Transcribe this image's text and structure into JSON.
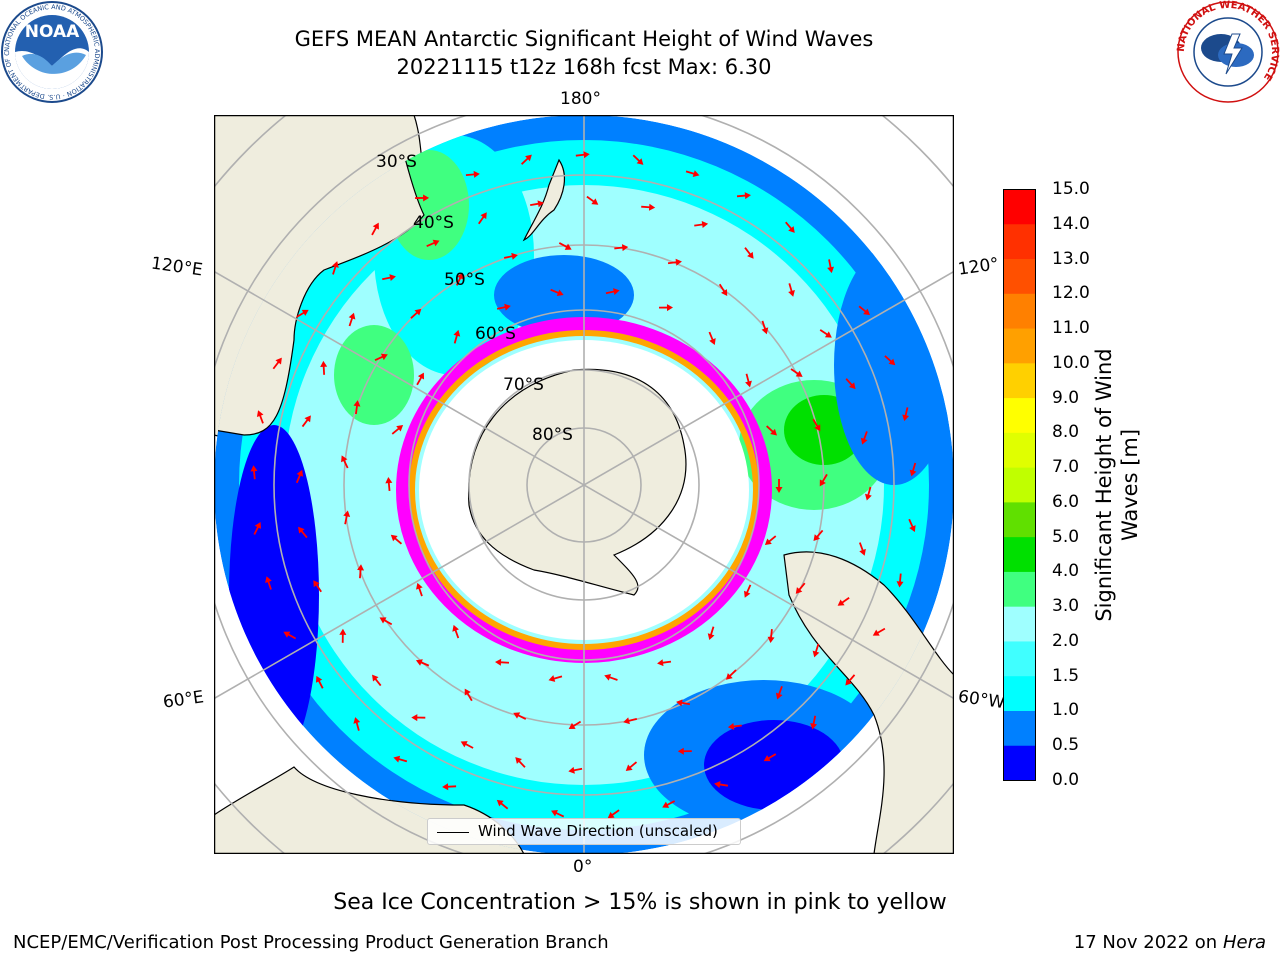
{
  "title": {
    "line1": "GEFS MEAN Antarctic Significant Height of Wind Waves",
    "line2": "20221115 t12z 168h fcst   Max: 6.30"
  },
  "map": {
    "projection": "south-polar-stereographic",
    "longitude_labels": {
      "top": "180°",
      "bottom": "0°",
      "upper_left": "120°E",
      "lower_left": "60°E",
      "upper_right": "120°",
      "lower_right": "60°W"
    },
    "latitude_labels": [
      "30°S",
      "40°S",
      "50°S",
      "60°S",
      "70°S",
      "80°S"
    ],
    "legend_label": "Wind Wave Direction (unscaled)",
    "arrow_color": "#ff0000",
    "land_color": "#efedde",
    "sea_ice_note_colors": [
      "#ff00ff",
      "#ffa500",
      "#ffff00"
    ]
  },
  "colorbar": {
    "label": "Significant Height of Wind Waves [m]",
    "label_line1": "Significant Height of Wind",
    "label_line2": "Waves [m]",
    "ticks": [
      "0.0",
      "0.5",
      "1.0",
      "1.5",
      "2.0",
      "3.0",
      "4.0",
      "5.0",
      "6.0",
      "7.0",
      "8.0",
      "9.0",
      "10.0",
      "11.0",
      "12.0",
      "13.0",
      "14.0",
      "15.0"
    ],
    "colors": [
      "#0000ff",
      "#0080ff",
      "#00ffff",
      "#40ffff",
      "#9fffff",
      "#40ff80",
      "#00e000",
      "#60e000",
      "#c0ff00",
      "#e0ff00",
      "#ffff00",
      "#ffd000",
      "#ffa000",
      "#ff8000",
      "#ff5000",
      "#ff3000",
      "#ff0000"
    ]
  },
  "caption": "Sea Ice Concentration > 15% is shown in pink to yellow",
  "footer": {
    "left": "NCEP/EMC/Verification Post Processing Product Generation Branch",
    "right_date": "17 Nov 2022 on",
    "right_host": "Hera"
  },
  "logos": {
    "noaa": "NOAA",
    "noaa_ring": "NATIONAL OCEANIC AND ATMOSPHERIC ADMINISTRATION · U.S. DEPARTMENT OF COMMERCE",
    "nws_ring": "NATIONAL WEATHER SERVICE"
  }
}
